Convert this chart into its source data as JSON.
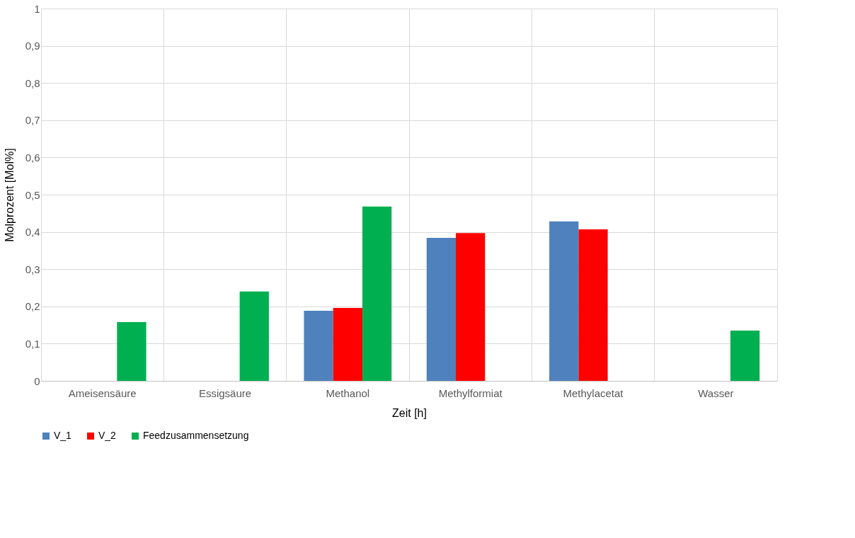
{
  "chart_data": {
    "type": "bar",
    "xlabel": "Zeit [h]",
    "ylabel": "Molprozent [Mol%]",
    "categories": [
      "Ameisensäure",
      "Essigsäure",
      "Methanol",
      "Methylformiat",
      "Methylacetat",
      "Wasser"
    ],
    "series": [
      {
        "name": "V_1",
        "color": "#4f81bd",
        "values": [
          null,
          null,
          0.188,
          0.384,
          0.428,
          null
        ]
      },
      {
        "name": "V_2",
        "color": "#ff0000",
        "values": [
          null,
          null,
          0.196,
          0.397,
          0.407,
          null
        ]
      },
      {
        "name": "Feedzusammensetzung",
        "color": "#00b050",
        "values": [
          0.158,
          0.24,
          0.468,
          null,
          null,
          0.135
        ]
      }
    ],
    "ylim": [
      0,
      1
    ],
    "yticks": [
      {
        "value": 0,
        "label": "0"
      },
      {
        "value": 0.1,
        "label": "0,1"
      },
      {
        "value": 0.2,
        "label": "0,2"
      },
      {
        "value": 0.3,
        "label": "0,3"
      },
      {
        "value": 0.4,
        "label": "0,4"
      },
      {
        "value": 0.5,
        "label": "0,5"
      },
      {
        "value": 0.6,
        "label": "0,6"
      },
      {
        "value": 0.7,
        "label": "0,7"
      },
      {
        "value": 0.8,
        "label": "0,8"
      },
      {
        "value": 0.9,
        "label": "0,9"
      },
      {
        "value": 1,
        "label": "1"
      }
    ],
    "grid": true,
    "legend": "bottom"
  }
}
